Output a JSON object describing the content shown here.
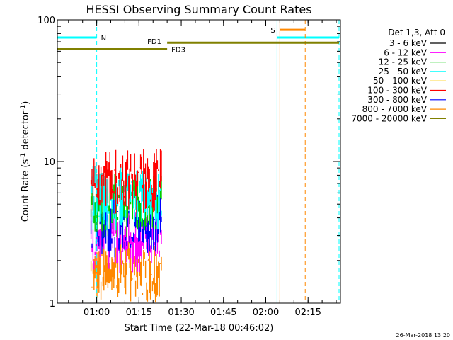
{
  "chart_data": {
    "type": "line",
    "title": "HESSI Observing Summary Count Rates",
    "xlabel": "Start Time (22-Mar-18 00:46:02)",
    "ylabel_main": "Count Rate (s",
    "ylabel_sup1": "-1",
    "ylabel_mid": " detector",
    "ylabel_sup2": "-1",
    "ylabel_end": ")",
    "yscale": "log",
    "ylim": [
      1,
      100
    ],
    "xlim": [
      "00:46:02",
      "02:26:30"
    ],
    "x_ticks": [
      "01:00",
      "01:15",
      "01:30",
      "01:45",
      "02:00",
      "02:15"
    ],
    "y_ticks": [
      "1",
      "10",
      "100"
    ],
    "grid": false,
    "legend": {
      "placement": "right",
      "title": "Det 1,3, Att 0",
      "entries": [
        {
          "label": "3 - 6 keV",
          "color": "#000000"
        },
        {
          "label": "6 - 12 keV",
          "color": "#ff00ff"
        },
        {
          "label": "12 - 25 keV",
          "color": "#00cc00"
        },
        {
          "label": "25 - 50 keV",
          "color": "#00ffff"
        },
        {
          "label": "50 - 100 keV",
          "color": "#ffcc00"
        },
        {
          "label": "100 - 300 keV",
          "color": "#ff0000"
        },
        {
          "label": "300 - 800 keV",
          "color": "#0000ff"
        },
        {
          "label": "800 - 7000 keV",
          "color": "#ff8800"
        },
        {
          "label": "7000 - 20000 keV",
          "color": "#808000"
        }
      ]
    },
    "series_levels": [
      {
        "name": "6 - 12 keV",
        "color": "#ff00ff",
        "level": 3.2
      },
      {
        "name": "12 - 25 keV",
        "color": "#00cc00",
        "level": 5.8
      },
      {
        "name": "25 - 50 keV",
        "color": "#00ffff",
        "level": 6.5
      },
      {
        "name": "100 - 300 keV",
        "color": "#ff0000",
        "level": 8.5
      },
      {
        "name": "300 - 800 keV",
        "color": "#0000ff",
        "level": 4.2
      },
      {
        "name": "800 - 7000 keV",
        "color": "#ff8800",
        "level": 2.0
      }
    ],
    "data_window": [
      "00:58",
      "01:23"
    ],
    "annotations": {
      "night": {
        "label": "N",
        "start": "00:46",
        "end": "01:00",
        "end_line": "01:00",
        "level": 75,
        "color": "#00ffff"
      },
      "saa": {
        "label": "S",
        "start": "02:05",
        "end": "02:14",
        "start_line": "02:05",
        "end_line": "02:14",
        "level": 85,
        "color": "#ff8800"
      },
      "night2": {
        "start": "02:04",
        "end": "02:26",
        "start_line": "02:04",
        "end_line": "02:26",
        "level": 75,
        "color": "#00ffff"
      },
      "fd1": {
        "label": "FD1",
        "start": "01:25",
        "end": "02:26",
        "level": 69,
        "color": "#808000"
      },
      "fd3": {
        "label": "FD3",
        "start": "00:46",
        "end": "01:25",
        "level": 62,
        "color": "#808000"
      }
    },
    "footer_date": "26-Mar-2018 13:20"
  },
  "colors": {
    "background": "#ffffff",
    "axis": "#000000",
    "night": "#00ffff",
    "saa": "#ff8800",
    "fd": "#808000"
  }
}
